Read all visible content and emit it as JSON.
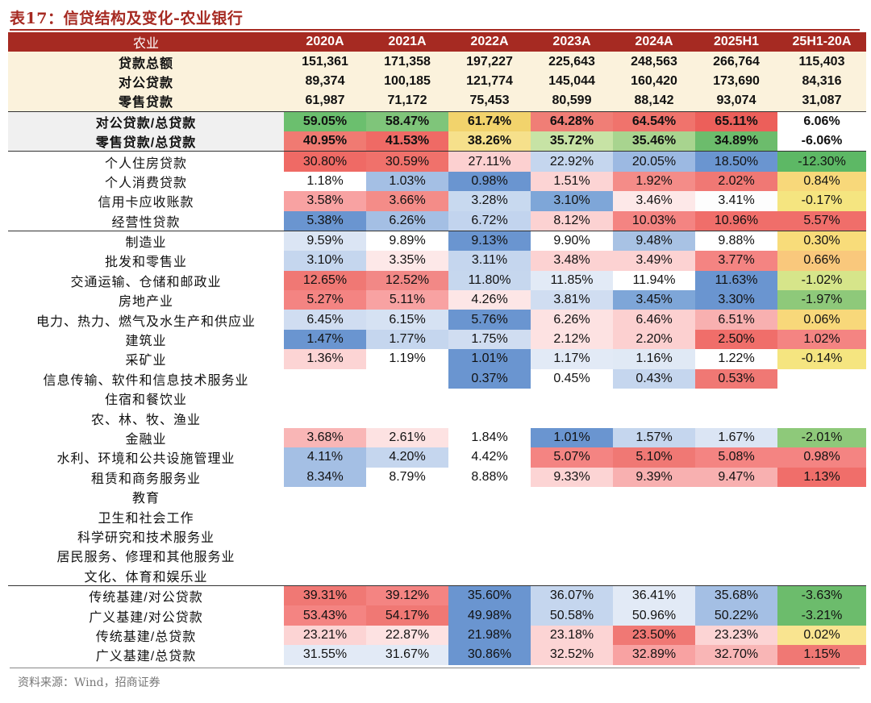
{
  "title": "表17：信贷结构及变化-农业银行",
  "source": "资料来源：Wind，招商证券",
  "header": [
    "农业",
    "2020A",
    "2021A",
    "2022A",
    "2023A",
    "2024A",
    "2025H1",
    "25H1-20A"
  ],
  "rows": [
    {
      "label": "贷款总额",
      "values": [
        "151,361",
        "171,358",
        "197,227",
        "225,643",
        "248,563",
        "266,764",
        "115,403"
      ]
    },
    {
      "label": "对公贷款",
      "values": [
        "89,374",
        "100,185",
        "121,774",
        "145,044",
        "160,420",
        "173,690",
        "84,316"
      ]
    },
    {
      "label": "零售贷款",
      "values": [
        "61,987",
        "71,172",
        "75,453",
        "80,599",
        "88,142",
        "93,074",
        "31,087"
      ]
    },
    {
      "label": "对公贷款/总贷款",
      "values": [
        "59.05%",
        "58.47%",
        "61.74%",
        "64.28%",
        "64.54%",
        "65.11%",
        "6.06%"
      ]
    },
    {
      "label": "零售贷款/总贷款",
      "values": [
        "40.95%",
        "41.53%",
        "38.26%",
        "35.72%",
        "35.46%",
        "34.89%",
        "-6.06%"
      ]
    },
    {
      "label": "个人住房贷款",
      "values": [
        "30.80%",
        "30.59%",
        "27.11%",
        "22.92%",
        "20.05%",
        "18.50%",
        "-12.30%"
      ]
    },
    {
      "label": "个人消费贷款",
      "values": [
        "1.18%",
        "1.03%",
        "0.98%",
        "1.51%",
        "1.92%",
        "2.02%",
        "0.84%"
      ]
    },
    {
      "label": "信用卡应收账款",
      "values": [
        "3.58%",
        "3.66%",
        "3.28%",
        "3.10%",
        "3.46%",
        "3.41%",
        "-0.17%"
      ]
    },
    {
      "label": "经营性贷款",
      "values": [
        "5.38%",
        "6.26%",
        "6.72%",
        "8.12%",
        "10.03%",
        "10.96%",
        "5.57%"
      ]
    },
    {
      "label": "制造业",
      "values": [
        "9.59%",
        "9.89%",
        "9.13%",
        "9.90%",
        "9.48%",
        "9.88%",
        "0.30%"
      ]
    },
    {
      "label": "批发和零售业",
      "values": [
        "3.10%",
        "3.35%",
        "3.11%",
        "3.48%",
        "3.49%",
        "3.77%",
        "0.66%"
      ]
    },
    {
      "label": "交通运输、仓储和邮政业",
      "values": [
        "12.65%",
        "12.52%",
        "11.80%",
        "11.85%",
        "11.94%",
        "11.63%",
        "-1.02%"
      ]
    },
    {
      "label": "房地产业",
      "values": [
        "5.27%",
        "5.11%",
        "4.26%",
        "3.81%",
        "3.45%",
        "3.30%",
        "-1.97%"
      ]
    },
    {
      "label": "电力、热力、燃气及水生产和供应业",
      "values": [
        "6.45%",
        "6.15%",
        "5.76%",
        "6.26%",
        "6.46%",
        "6.51%",
        "0.06%"
      ]
    },
    {
      "label": "建筑业",
      "values": [
        "1.47%",
        "1.77%",
        "1.75%",
        "2.12%",
        "2.20%",
        "2.50%",
        "1.02%"
      ]
    },
    {
      "label": "采矿业",
      "values": [
        "1.36%",
        "1.19%",
        "1.01%",
        "1.17%",
        "1.16%",
        "1.22%",
        "-0.14%"
      ]
    },
    {
      "label": "信息传输、软件和信息技术服务业",
      "values": [
        "",
        "",
        "0.37%",
        "0.45%",
        "0.43%",
        "0.53%",
        ""
      ]
    },
    {
      "label": "住宿和餐饮业",
      "values": [
        "",
        "",
        "",
        "",
        "",
        "",
        ""
      ]
    },
    {
      "label": "农、林、牧、渔业",
      "values": [
        "",
        "",
        "",
        "",
        "",
        "",
        ""
      ]
    },
    {
      "label": "金融业",
      "values": [
        "3.68%",
        "2.61%",
        "1.84%",
        "1.01%",
        "1.57%",
        "1.67%",
        "-2.01%"
      ]
    },
    {
      "label": "水利、环境和公共设施管理业",
      "values": [
        "4.11%",
        "4.20%",
        "4.42%",
        "5.07%",
        "5.10%",
        "5.08%",
        "0.98%"
      ]
    },
    {
      "label": "租赁和商务服务业",
      "values": [
        "8.34%",
        "8.79%",
        "8.88%",
        "9.33%",
        "9.39%",
        "9.47%",
        "1.13%"
      ]
    },
    {
      "label": "教育",
      "values": [
        "",
        "",
        "",
        "",
        "",
        "",
        ""
      ]
    },
    {
      "label": "卫生和社会工作",
      "values": [
        "",
        "",
        "",
        "",
        "",
        "",
        ""
      ]
    },
    {
      "label": "科学研究和技术服务业",
      "values": [
        "",
        "",
        "",
        "",
        "",
        "",
        ""
      ]
    },
    {
      "label": "居民服务、修理和其他服务业",
      "values": [
        "",
        "",
        "",
        "",
        "",
        "",
        ""
      ]
    },
    {
      "label": "文化、体育和娱乐业",
      "values": [
        "",
        "",
        "",
        "",
        "",
        "",
        ""
      ]
    },
    {
      "label": "传统基建/对公贷款",
      "values": [
        "39.31%",
        "39.12%",
        "35.60%",
        "36.07%",
        "36.41%",
        "35.68%",
        "-3.63%"
      ]
    },
    {
      "label": "广义基建/对公贷款",
      "values": [
        "53.43%",
        "54.17%",
        "49.98%",
        "50.58%",
        "50.96%",
        "50.22%",
        "-3.21%"
      ]
    },
    {
      "label": "传统基建/总贷款",
      "values": [
        "23.21%",
        "22.87%",
        "21.98%",
        "23.18%",
        "23.50%",
        "23.23%",
        "0.02%"
      ]
    },
    {
      "label": "广义基建/总贷款",
      "values": [
        "31.55%",
        "31.67%",
        "30.86%",
        "32.52%",
        "32.89%",
        "32.70%",
        "1.15%"
      ]
    }
  ],
  "cell_colors": [
    [
      "",
      "",
      "",
      "",
      "",
      "",
      ""
    ],
    [
      "",
      "",
      "",
      "",
      "",
      "",
      ""
    ],
    [
      "",
      "",
      "",
      "",
      "",
      "",
      ""
    ],
    [
      "#6bbf6e",
      "#7fc57a",
      "#f2d36c",
      "#f07e76",
      "#f0736c",
      "#ec5f5a",
      "#ffffff"
    ],
    [
      "#f07a72",
      "#ef6a65",
      "#f6e08b",
      "#c7e3a5",
      "#a8d48f",
      "#6cbc6c",
      "#ffffff"
    ],
    [
      "#ef6a65",
      "#f0716b",
      "#fcd0d0",
      "#c5d6ee",
      "#9cb9e2",
      "#6a95d0",
      "#5db865"
    ],
    [
      "#ffffff",
      "#a4bfe4",
      "#6a95d0",
      "#fcd4d4",
      "#f48c88",
      "#f07874",
      "#f8d87a"
    ],
    [
      "#f8a2a2",
      "#f48c88",
      "#c8d9ef",
      "#7ea6d8",
      "#fde8e8",
      "#fdfdfd",
      "#f5e580"
    ],
    [
      "#6a95d0",
      "#a4bfe4",
      "#c2d4ee",
      "#fcd2d2",
      "#f48482",
      "#f06e6a",
      "#f06e6a"
    ],
    [
      "#dbe5f4",
      "#ffffff",
      "#6a95d0",
      "#ffffff",
      "#a8c2e4",
      "#ffffff",
      "#f8dc7a"
    ],
    [
      "#c5d6ee",
      "#fde8e8",
      "#c5d6ee",
      "#fcd2d2",
      "#fcd2d2",
      "#f48482",
      "#f9c87c"
    ],
    [
      "#f07874",
      "#f28886",
      "#c6d7ee",
      "#e2eaf6",
      "#ffffff",
      "#6a95d0",
      "#d6e58a"
    ],
    [
      "#f48482",
      "#f8a2a2",
      "#fde6e6",
      "#d0ddf1",
      "#7ea6d8",
      "#6a95d0",
      "#8ec97a"
    ],
    [
      "#d0ddf1",
      "#d6e2f3",
      "#6a95d0",
      "#fde2e2",
      "#fcd0d0",
      "#f8b0b0",
      "#f8d87a"
    ],
    [
      "#6a95d0",
      "#c5d6ee",
      "#d0ddf1",
      "#fde2e2",
      "#fcd0d0",
      "#f06e6a",
      "#f48482"
    ],
    [
      "#fcd4d4",
      "#ffffff",
      "#6a95d0",
      "#e2eaf6",
      "#e0e9f5",
      "#ffffff",
      "#f5e580"
    ],
    [
      "",
      "",
      "#6a95d0",
      "#ffffff",
      "#c5d6ee",
      "#f07874",
      ""
    ],
    [
      "",
      "",
      "",
      "",
      "",
      "",
      ""
    ],
    [
      "",
      "",
      "",
      "",
      "",
      "",
      ""
    ],
    [
      "#f9b6b6",
      "#fde2e2",
      "#ffffff",
      "#6a95d0",
      "#c5d6ee",
      "#dbe5f4",
      "#8ec97a"
    ],
    [
      "#a4bfe4",
      "#c5d6ee",
      "#ffffff",
      "#f48482",
      "#f07874",
      "#f48482",
      "#f48482"
    ],
    [
      "#a4bfe4",
      "#ffffff",
      "#ffffff",
      "#fcd4d4",
      "#f8b0b0",
      "#f8b0b0",
      "#f06e6a"
    ],
    [
      "",
      "",
      "",
      "",
      "",
      "",
      ""
    ],
    [
      "",
      "",
      "",
      "",
      "",
      "",
      ""
    ],
    [
      "",
      "",
      "",
      "",
      "",
      "",
      ""
    ],
    [
      "",
      "",
      "",
      "",
      "",
      "",
      ""
    ],
    [
      "",
      "",
      "",
      "",
      "",
      "",
      ""
    ],
    [
      "#f07874",
      "#f48482",
      "#6a95d0",
      "#c5d6ee",
      "#e2eaf6",
      "#a4bfe4",
      "#6cbc6c"
    ],
    [
      "#f48482",
      "#f07874",
      "#6a95d0",
      "#c5d6ee",
      "#e2eaf6",
      "#a4bfe4",
      "#6cbc6c"
    ],
    [
      "#fcd4d4",
      "#fde2e2",
      "#6a95d0",
      "#fcd4d4",
      "#f07874",
      "#fcd4d4",
      "#f9e490"
    ],
    [
      "#e2eaf6",
      "#e2eaf6",
      "#6a95d0",
      "#fcd4d4",
      "#f8a2a2",
      "#f9b6b6",
      "#f07874"
    ]
  ]
}
